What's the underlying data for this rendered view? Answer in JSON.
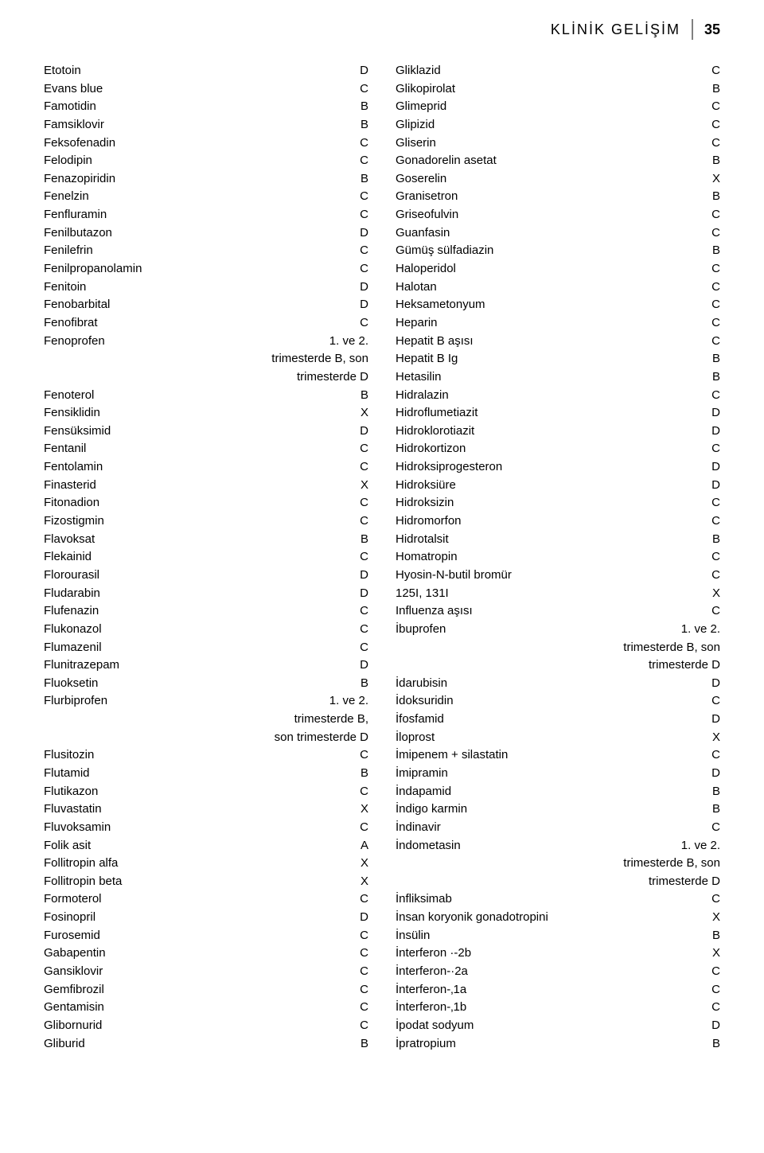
{
  "header": {
    "title": "KLİNİK GELİŞİM",
    "page_number": "35"
  },
  "left_column": [
    {
      "drug": "Etotoin",
      "cat": "D"
    },
    {
      "drug": "Evans blue",
      "cat": "C"
    },
    {
      "drug": "Famotidin",
      "cat": "B"
    },
    {
      "drug": "Famsiklovir",
      "cat": "B"
    },
    {
      "drug": "Feksofenadin",
      "cat": "C"
    },
    {
      "drug": "Felodipin",
      "cat": "C"
    },
    {
      "drug": "Fenazopiridin",
      "cat": "B"
    },
    {
      "drug": "Fenelzin",
      "cat": "C"
    },
    {
      "drug": "Fenfluramin",
      "cat": "C"
    },
    {
      "drug": "Fenilbutazon",
      "cat": "D"
    },
    {
      "drug": "Fenilefrin",
      "cat": "C"
    },
    {
      "drug": "Fenilpropanolamin",
      "cat": "C"
    },
    {
      "drug": "Fenitoin",
      "cat": "D"
    },
    {
      "drug": "Fenobarbital",
      "cat": "D"
    },
    {
      "drug": "Fenofibrat",
      "cat": "C"
    },
    {
      "drug": "Fenoprofen",
      "cat": "1. ve 2."
    },
    {
      "drug": "",
      "cat": "trimesterde B, son"
    },
    {
      "drug": "",
      "cat": "trimesterde D"
    },
    {
      "drug": "Fenoterol",
      "cat": "B"
    },
    {
      "drug": "Fensiklidin",
      "cat": "X"
    },
    {
      "drug": "Fensüksimid",
      "cat": "D"
    },
    {
      "drug": "Fentanil",
      "cat": "C"
    },
    {
      "drug": "Fentolamin",
      "cat": "C"
    },
    {
      "drug": "Finasterid",
      "cat": "X"
    },
    {
      "drug": "Fitonadion",
      "cat": "C"
    },
    {
      "drug": "Fizostigmin",
      "cat": "C"
    },
    {
      "drug": "Flavoksat",
      "cat": "B"
    },
    {
      "drug": "Flekainid",
      "cat": "C"
    },
    {
      "drug": "Florourasil",
      "cat": "D"
    },
    {
      "drug": "Fludarabin",
      "cat": "D"
    },
    {
      "drug": "Flufenazin",
      "cat": "C"
    },
    {
      "drug": "Flukonazol",
      "cat": "C"
    },
    {
      "drug": "Flumazenil",
      "cat": "C"
    },
    {
      "drug": "Flunitrazepam",
      "cat": "D"
    },
    {
      "drug": "Fluoksetin",
      "cat": "B"
    },
    {
      "drug": "Flurbiprofen",
      "cat": "1. ve 2."
    },
    {
      "drug": "",
      "cat": "trimesterde B,"
    },
    {
      "drug": "",
      "cat": "son trimesterde D"
    },
    {
      "drug": "Flusitozin",
      "cat": "C"
    },
    {
      "drug": "Flutamid",
      "cat": "B"
    },
    {
      "drug": "Flutikazon",
      "cat": "C"
    },
    {
      "drug": "Fluvastatin",
      "cat": "X"
    },
    {
      "drug": "Fluvoksamin",
      "cat": "C"
    },
    {
      "drug": "Folik asit",
      "cat": "A"
    },
    {
      "drug": "Follitropin alfa",
      "cat": "X"
    },
    {
      "drug": "Follitropin beta",
      "cat": "X"
    },
    {
      "drug": "Formoterol",
      "cat": "C"
    },
    {
      "drug": "Fosinopril",
      "cat": "D"
    },
    {
      "drug": "Furosemid",
      "cat": "C"
    },
    {
      "drug": "Gabapentin",
      "cat": "C"
    },
    {
      "drug": "Gansiklovir",
      "cat": "C"
    },
    {
      "drug": "Gemfibrozil",
      "cat": "C"
    },
    {
      "drug": "Gentamisin",
      "cat": "C"
    },
    {
      "drug": "Glibornurid",
      "cat": "C"
    },
    {
      "drug": "Gliburid",
      "cat": "B"
    }
  ],
  "right_column": [
    {
      "drug": "Gliklazid",
      "cat": "C"
    },
    {
      "drug": "Glikopirolat",
      "cat": "B"
    },
    {
      "drug": "Glimeprid",
      "cat": "C"
    },
    {
      "drug": "Glipizid",
      "cat": "C"
    },
    {
      "drug": "Gliserin",
      "cat": "C"
    },
    {
      "drug": "Gonadorelin asetat",
      "cat": "B"
    },
    {
      "drug": "Goserelin",
      "cat": "X"
    },
    {
      "drug": "Granisetron",
      "cat": "B"
    },
    {
      "drug": "Griseofulvin",
      "cat": "C"
    },
    {
      "drug": "Guanfasin",
      "cat": "C"
    },
    {
      "drug": "Gümüş sülfadiazin",
      "cat": "B"
    },
    {
      "drug": "Haloperidol",
      "cat": "C"
    },
    {
      "drug": "Halotan",
      "cat": "C"
    },
    {
      "drug": "Heksametonyum",
      "cat": "C"
    },
    {
      "drug": "Heparin",
      "cat": "C"
    },
    {
      "drug": "Hepatit B aşısı",
      "cat": "C"
    },
    {
      "drug": "Hepatit B Ig",
      "cat": "B"
    },
    {
      "drug": "Hetasilin",
      "cat": "B"
    },
    {
      "drug": "Hidralazin",
      "cat": "C"
    },
    {
      "drug": "Hidroflumetiazit",
      "cat": "D"
    },
    {
      "drug": "Hidroklorotiazit",
      "cat": "D"
    },
    {
      "drug": "Hidrokortizon",
      "cat": "C"
    },
    {
      "drug": "Hidroksiprogesteron",
      "cat": "D"
    },
    {
      "drug": "Hidroksiüre",
      "cat": "D"
    },
    {
      "drug": "Hidroksizin",
      "cat": "C"
    },
    {
      "drug": "Hidromorfon",
      "cat": "C"
    },
    {
      "drug": "Hidrotalsit",
      "cat": "B"
    },
    {
      "drug": "Homatropin",
      "cat": "C"
    },
    {
      "drug": "Hyosin-N-butil bromür",
      "cat": "C"
    },
    {
      "drug": "125I, 131I",
      "cat": "X"
    },
    {
      "drug": "Influenza aşısı",
      "cat": "C"
    },
    {
      "drug": "İbuprofen",
      "cat": "1. ve 2."
    },
    {
      "drug": "",
      "cat": "trimesterde B, son"
    },
    {
      "drug": "",
      "cat": "trimesterde D"
    },
    {
      "drug": "İdarubisin",
      "cat": "D"
    },
    {
      "drug": "İdoksuridin",
      "cat": "C"
    },
    {
      "drug": "İfosfamid",
      "cat": "D"
    },
    {
      "drug": "İloprost",
      "cat": "X"
    },
    {
      "drug": "İmipenem + silastatin",
      "cat": "C"
    },
    {
      "drug": "İmipramin",
      "cat": "D"
    },
    {
      "drug": "İndapamid",
      "cat": "B"
    },
    {
      "drug": "İndigo karmin",
      "cat": "B"
    },
    {
      "drug": "İndinavir",
      "cat": "C"
    },
    {
      "drug": "İndometasin",
      "cat": "1. ve 2."
    },
    {
      "drug": "",
      "cat": "trimesterde B, son"
    },
    {
      "drug": "",
      "cat": "trimesterde D"
    },
    {
      "drug": "İnfliksimab",
      "cat": "C"
    },
    {
      "drug": "İnsan koryonik gonadotropini",
      "cat": "X"
    },
    {
      "drug": "İnsülin",
      "cat": "B"
    },
    {
      "drug": "İnterferon ·-2b",
      "cat": "X"
    },
    {
      "drug": "İnterferon-·2a",
      "cat": "C"
    },
    {
      "drug": "İnterferon-‚1a",
      "cat": "C"
    },
    {
      "drug": "İnterferon-‚1b",
      "cat": "C"
    },
    {
      "drug": "İpodat sodyum",
      "cat": "D"
    },
    {
      "drug": "İpratropium",
      "cat": "B"
    }
  ]
}
